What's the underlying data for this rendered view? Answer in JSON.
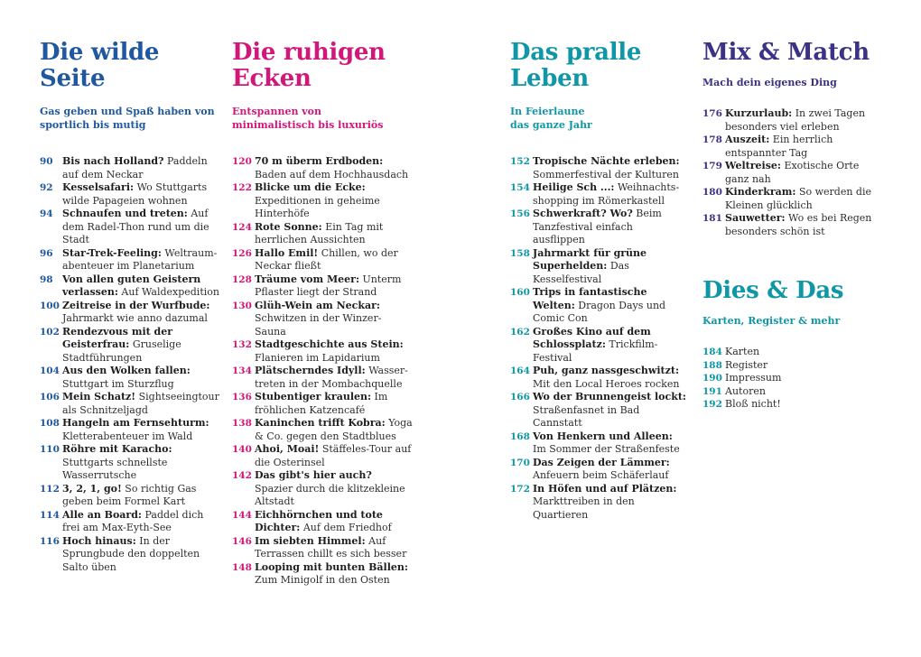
{
  "colors": {
    "blue": "#1f58a0",
    "magenta": "#d1187a",
    "teal": "#0f97a8",
    "purple": "#3b3285"
  },
  "sections": [
    {
      "title_line1": "Die wilde",
      "title_line2": "Seite",
      "sub_line1": "Gas geben und Spaß haben von",
      "sub_line2": "sportlich bis mutig",
      "entries": [
        {
          "page": "90",
          "bold": "Bis nach Holland?",
          "rest": " Paddeln auf dem Neckar"
        },
        {
          "page": "92",
          "bold": "Kesselsafari:",
          "rest": " Wo Stuttgarts wilde Papageien wohnen"
        },
        {
          "page": "94",
          "bold": "Schnaufen und treten:",
          "rest": " Auf dem Radel-Thon rund um die Stadt"
        },
        {
          "page": "96",
          "bold": "Star-Trek-Feeling:",
          "rest": " Weltraum­abenteuer im Planetarium"
        },
        {
          "page": "98",
          "bold": "Von allen guten Geistern ver­lassen:",
          "rest": " Auf Waldexpedition"
        },
        {
          "page": "100",
          "bold": "Zeitreise in der Wurfbude:",
          "rest": " Jahrmarkt wie anno dazumal"
        },
        {
          "page": "102",
          "bold": "Rendezvous mit der Geister­frau:",
          "rest": " Gruselige Stadtführungen"
        },
        {
          "page": "104",
          "bold": "Aus den Wolken fallen:",
          "rest": " Stuttgart im Sturzflug"
        },
        {
          "page": "106",
          "bold": "Mein Schatz!",
          "rest": " Sightseeingtour als Schnitzeljagd"
        },
        {
          "page": "108",
          "bold": "Hangeln am Fernsehturm:",
          "rest": " Kletterabenteuer im Wald"
        },
        {
          "page": "110",
          "bold": "Röhre mit Karacho:",
          "rest": " Stuttgarts schnellste Wasserrutsche"
        },
        {
          "page": "112",
          "bold": "3, 2, 1, go!",
          "rest": " So richtig Gas geben beim Formel Kart"
        },
        {
          "page": "114",
          "bold": "Alle an Board:",
          "rest": " Paddel dich frei am Max-Eyth-See"
        },
        {
          "page": "116",
          "bold": "Hoch hinaus:",
          "rest": " In der Sprungbude den doppelten Salto üben"
        }
      ]
    },
    {
      "title_line1": "Die ruhigen",
      "title_line2": "Ecken",
      "sub_line1": "Entspannen von",
      "sub_line2": "minimalistisch bis luxuriös",
      "entries": [
        {
          "page": "120",
          "bold": "70 m überm Erdboden:",
          "rest": " Baden auf dem Hochhausdach"
        },
        {
          "page": "122",
          "bold": "Blicke um die Ecke:",
          "rest": " Expeditionen in geheime Hinterhöfe"
        },
        {
          "page": "124",
          "bold": "Rote Sonne:",
          "rest": " Ein Tag mit herrlichen Aussichten"
        },
        {
          "page": "126",
          "bold": "Hallo Emil!",
          "rest": " Chillen, wo der Neckar fließt"
        },
        {
          "page": "128",
          "bold": "Träume vom Meer:",
          "rest": " Unterm Pflaster liegt der Strand"
        },
        {
          "page": "130",
          "bold": "Glüh-Wein am Neckar:",
          "rest": " Schwitzen in der Winzer-Sauna"
        },
        {
          "page": "132",
          "bold": "Stadtgeschichte aus Stein:",
          "rest": " Flanieren im Lapidarium"
        },
        {
          "page": "134",
          "bold": "Plätscherndes Idyll:",
          "rest": " Wasser­treten in der Mombachquelle"
        },
        {
          "page": "136",
          "bold": "Stubentiger kraulen:",
          "rest": " Im fröhlichen Katzencafé"
        },
        {
          "page": "138",
          "bold": "Kaninchen trifft Kobra:",
          "rest": " Yoga & Co. gegen den Stadtblues"
        },
        {
          "page": "140",
          "bold": "Ahoi, Moai!",
          "rest": " Stäffeles-Tour auf die Osterinsel"
        },
        {
          "page": "142",
          "bold": "Das gibt's hier auch?",
          "rest": " Spazier durch die klitzekleine Altstadt"
        },
        {
          "page": "144",
          "bold": "Eichhörnchen und tote Dichter:",
          "rest": " Auf dem Friedhof"
        },
        {
          "page": "146",
          "bold": "Im siebten Himmel:",
          "rest": " Auf Terrassen chillt es sich besser"
        },
        {
          "page": "148",
          "bold": "Looping mit bunten Bällen:",
          "rest": " Zum Minigolf in den Osten"
        }
      ]
    },
    {
      "title_line1": "Das pralle",
      "title_line2": "Leben",
      "sub_line1": "In Feierlaune",
      "sub_line2": "das ganze Jahr",
      "entries": [
        {
          "page": "152",
          "bold": "Tropische Nächte erleben:",
          "rest": " Sommerfestival der Kulturen"
        },
        {
          "page": "154",
          "bold": "Heilige Sch ...:",
          "rest": " Weihnachts­shopping im Römerkastell"
        },
        {
          "page": "156",
          "bold": "Schwerkraft? Wo?",
          "rest": " Beim Tanzfestival einfach ausflippen"
        },
        {
          "page": "158",
          "bold": "Jahrmarkt für grüne Super­helden:",
          "rest": " Das Kesselfestival"
        },
        {
          "page": "160",
          "bold": "Trips in fantastische Welten:",
          "rest": " Dragon Days und Comic Con"
        },
        {
          "page": "162",
          "bold": "Großes Kino auf dem Schloss­platz:",
          "rest": " Trickfilm-Festival"
        },
        {
          "page": "164",
          "bold": "Puh, ganz nassgeschwitzt:",
          "rest": " Mit den Local Heroes rocken"
        },
        {
          "page": "166",
          "bold": "Wo der Brunnengeist lockt:",
          "rest": " Straßenfasnet in Bad Cannstatt"
        },
        {
          "page": "168",
          "bold": "Von Henkern und Alleen:",
          "rest": " Im Sommer der Straßenfeste"
        },
        {
          "page": "170",
          "bold": "Das Zeigen der Lämmer:",
          "rest": " Anfeuern beim Schäferlauf"
        },
        {
          "page": "172",
          "bold": "In Höfen und auf Plätzen:",
          "rest": " Markttreiben in den Quartieren"
        }
      ]
    },
    {
      "title_line1": "Mix & Match",
      "sub_line1": "Mach dein eigenes Ding",
      "entries": [
        {
          "page": "176",
          "bold": "Kurzurlaub:",
          "rest": " In zwei Tagen besonders viel erleben"
        },
        {
          "page": "178",
          "bold": "Auszeit:",
          "rest": " Ein herrlich entspannter Tag"
        },
        {
          "page": "179",
          "bold": "Weltreise:",
          "rest": " Exotische Orte ganz nah"
        },
        {
          "page": "180",
          "bold": "Kinderkram:",
          "rest": " So werden die Kleinen glücklich"
        },
        {
          "page": "181",
          "bold": "Sauwetter:",
          "rest": " Wo es bei Regen besonders schön ist"
        }
      ]
    },
    {
      "title_line1": "Dies & Das",
      "sub_line1": "Karten, Register & mehr",
      "entries": [
        {
          "page": "184",
          "bold": "",
          "rest": "Karten"
        },
        {
          "page": "188",
          "bold": "",
          "rest": "Register"
        },
        {
          "page": "190",
          "bold": "",
          "rest": "Impressum"
        },
        {
          "page": "191",
          "bold": "",
          "rest": "Autoren"
        },
        {
          "page": "192",
          "bold": "",
          "rest": "Bloß nicht!"
        }
      ]
    }
  ]
}
